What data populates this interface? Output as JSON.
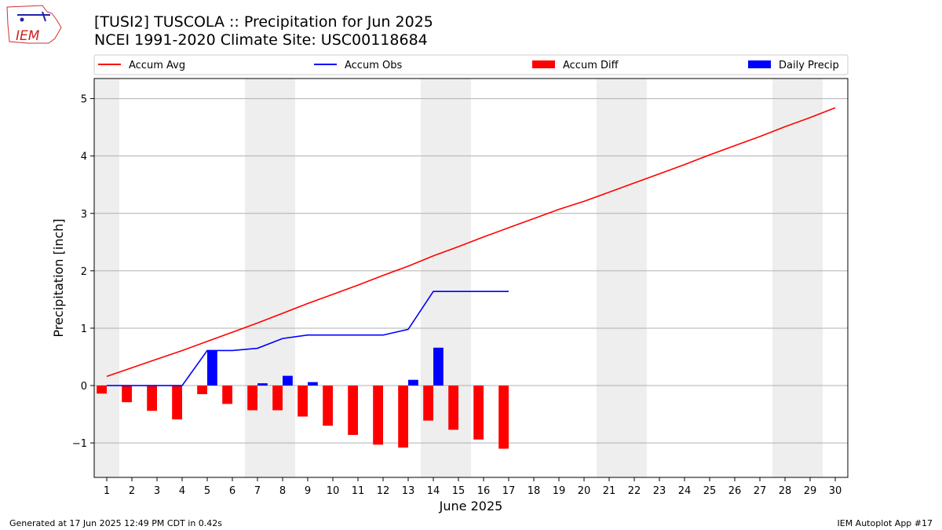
{
  "title_line1": "[TUSI2] TUSCOLA :: Precipitation for Jun 2025",
  "title_line2": "NCEI 1991-2020 Climate Site: USC00118684",
  "footer_left": "Generated at 17 Jun 2025 12:49 PM CDT in 0.42s",
  "footer_right": "IEM Autoplot App #17",
  "logo_text": "IEM",
  "colors": {
    "accum_avg": "#ff0000",
    "accum_obs": "#0000ff",
    "accum_diff": "#ff0000",
    "daily_precip": "#0000ff",
    "weekend_band": "#eeeeee",
    "grid": "#b0b0b0"
  },
  "chart_data": {
    "type": "bar",
    "xlabel": "June 2025",
    "ylabel": "Precipitation [inch]",
    "xlim": [
      0.5,
      30.5
    ],
    "ylim": [
      -1.6,
      5.35
    ],
    "yticks": [
      -1,
      0,
      1,
      2,
      3,
      4,
      5
    ],
    "xticks": [
      1,
      2,
      3,
      4,
      5,
      6,
      7,
      8,
      9,
      10,
      11,
      12,
      13,
      14,
      15,
      16,
      17,
      18,
      19,
      20,
      21,
      22,
      23,
      24,
      25,
      26,
      27,
      28,
      29,
      30
    ],
    "grid": "horizontal",
    "legend_placement": "top",
    "weekend_bands": [
      [
        0.5,
        1.5
      ],
      [
        6.5,
        8.5
      ],
      [
        13.5,
        15.5
      ],
      [
        20.5,
        22.5
      ],
      [
        27.5,
        29.5
      ]
    ],
    "series": [
      {
        "name": "Accum Avg",
        "kind": "line",
        "x": [
          1,
          2,
          3,
          4,
          5,
          6,
          7,
          8,
          9,
          10,
          11,
          12,
          13,
          14,
          15,
          16,
          17,
          18,
          19,
          20,
          21,
          22,
          23,
          24,
          25,
          26,
          27,
          28,
          29,
          30
        ],
        "values": [
          0.16,
          0.31,
          0.46,
          0.61,
          0.77,
          0.93,
          1.09,
          1.26,
          1.43,
          1.59,
          1.75,
          1.92,
          2.08,
          2.26,
          2.42,
          2.59,
          2.75,
          2.91,
          3.07,
          3.21,
          3.37,
          3.53,
          3.69,
          3.85,
          4.02,
          4.18,
          4.34,
          4.51,
          4.67,
          4.84
        ]
      },
      {
        "name": "Accum Obs",
        "kind": "line",
        "x": [
          1,
          2,
          3,
          4,
          5,
          6,
          7,
          8,
          9,
          10,
          11,
          12,
          13,
          14,
          15,
          16,
          17
        ],
        "values": [
          0.0,
          0.0,
          0.0,
          0.0,
          0.61,
          0.61,
          0.65,
          0.82,
          0.88,
          0.88,
          0.88,
          0.88,
          0.98,
          1.64,
          1.64,
          1.64,
          1.64
        ]
      },
      {
        "name": "Accum Diff",
        "kind": "bar",
        "offset": -0.2,
        "x": [
          1,
          2,
          3,
          4,
          5,
          6,
          7,
          8,
          9,
          10,
          11,
          12,
          13,
          14,
          15,
          16,
          17
        ],
        "values": [
          -0.14,
          -0.29,
          -0.44,
          -0.59,
          -0.15,
          -0.32,
          -0.43,
          -0.43,
          -0.54,
          -0.7,
          -0.86,
          -1.03,
          -1.08,
          -0.61,
          -0.77,
          -0.94,
          -1.1
        ]
      },
      {
        "name": "Daily Precip",
        "kind": "bar",
        "offset": 0.2,
        "x": [
          1,
          2,
          3,
          4,
          5,
          6,
          7,
          8,
          9,
          10,
          11,
          12,
          13,
          14,
          15,
          16,
          17
        ],
        "values": [
          0.0,
          0.0,
          0.0,
          0.0,
          0.61,
          0.0,
          0.04,
          0.17,
          0.06,
          0.0,
          0.0,
          0.0,
          0.1,
          0.66,
          0.0,
          0.0,
          0.0
        ]
      }
    ]
  }
}
